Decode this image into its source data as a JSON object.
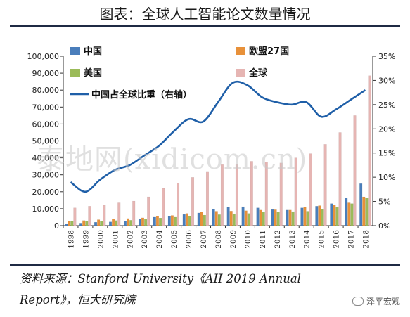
{
  "title": "图表：全球人工智能论文数量情况",
  "source_line1": "资料来源：Stanford University《AII 2019 Annual",
  "source_line2": "Report》，恒大研究院",
  "watermark": "泰地网(xidicom.cn)",
  "brand": "泽平宏观",
  "chart_data": {
    "type": "bar",
    "categories": [
      "1998",
      "1999",
      "2000",
      "2001",
      "2002",
      "2003",
      "2004",
      "2005",
      "2006",
      "2007",
      "2008",
      "2009",
      "2010",
      "2011",
      "2012",
      "2013",
      "2014",
      "2015",
      "2016",
      "2017",
      "2018"
    ],
    "series": [
      {
        "name": "中国",
        "kind": "bar",
        "axis": "left",
        "color": "#4a7ebb",
        "values": [
          1000,
          1500,
          2000,
          2200,
          2800,
          4000,
          5000,
          5600,
          6600,
          7500,
          9600,
          10800,
          11200,
          10500,
          9500,
          9200,
          10500,
          11500,
          13000,
          16500,
          24800
        ]
      },
      {
        "name": "欧盟27国",
        "kind": "bar",
        "axis": "left",
        "color": "#e8913a",
        "values": [
          2500,
          3000,
          3500,
          3800,
          4200,
          4600,
          5500,
          6000,
          7200,
          8000,
          8500,
          8600,
          8800,
          9200,
          9400,
          9200,
          10800,
          11800,
          12300,
          13500,
          17000
        ]
      },
      {
        "name": "美国",
        "kind": "bar",
        "axis": "left",
        "color": "#9bbb59",
        "values": [
          2500,
          2800,
          2800,
          3000,
          3200,
          3800,
          4500,
          5000,
          5600,
          6200,
          6500,
          7000,
          7200,
          8000,
          8200,
          8300,
          8500,
          9800,
          11000,
          13000,
          16500
        ]
      },
      {
        "name": "全球",
        "kind": "bar",
        "axis": "left",
        "color": "#e6b5b3",
        "values": [
          10500,
          11500,
          12000,
          13500,
          14500,
          17000,
          22000,
          25000,
          28500,
          32000,
          36000,
          36000,
          38000,
          37500,
          37000,
          40000,
          42500,
          48000,
          55000,
          65000,
          88500
        ]
      },
      {
        "name": "中国占全球比重（右轴）",
        "kind": "line",
        "axis": "right",
        "color": "#1f5fa8",
        "values": [
          9.0,
          7.0,
          9.5,
          11.5,
          12.5,
          14.5,
          16.5,
          19.5,
          22.0,
          21.5,
          25.5,
          29.5,
          29.0,
          26.5,
          25.5,
          25.0,
          25.5,
          22.5,
          24.0,
          26.0,
          28.0
        ]
      }
    ],
    "y_left": {
      "min": 0,
      "max": 100000,
      "ticks": [
        "0",
        "10,000",
        "20,000",
        "30,000",
        "40,000",
        "50,000",
        "60,000",
        "70,000",
        "80,000",
        "90,000",
        "100,000"
      ]
    },
    "y_right": {
      "min": 0,
      "max": 35,
      "ticks": [
        "0%",
        "5%",
        "10%",
        "15%",
        "20%",
        "25%",
        "30%",
        "35%"
      ]
    },
    "legend_position": "top"
  }
}
